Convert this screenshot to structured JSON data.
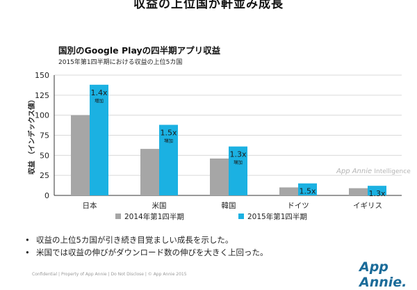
{
  "headline": "収益の上位国が軒並み成長",
  "chart_data": {
    "type": "bar",
    "title": "国別のGoogle Playの四半期アプリ収益",
    "subtitle": "2015年第1四半期における収益の上位5カ国",
    "ylabel": "収益 （インデックス値）",
    "xlabel": "",
    "categories": [
      "日本",
      "米国",
      "韓国",
      "ドイツ",
      "イギリス"
    ],
    "ylim": [
      0,
      150
    ],
    "yticks": [
      0,
      25,
      50,
      75,
      100,
      125,
      150
    ],
    "grid": true,
    "legend_position": "bottom",
    "series": [
      {
        "name": "2014年第1四半期",
        "color": "#a6a6a6",
        "values": [
          100,
          58,
          46,
          10,
          9
        ]
      },
      {
        "name": "2015年第1四半期",
        "color": "#1bb1e2",
        "values": [
          138,
          88,
          61,
          15,
          12
        ]
      }
    ],
    "annotations": [
      {
        "category": "日本",
        "ratio": "1.4x",
        "note": "増加"
      },
      {
        "category": "米国",
        "ratio": "1.5x",
        "note": "増加"
      },
      {
        "category": "韓国",
        "ratio": "1.3x",
        "note": "増加"
      },
      {
        "category": "ドイツ",
        "ratio": "1.5x",
        "note": ""
      },
      {
        "category": "イギリス",
        "ratio": "1.3x",
        "note": ""
      }
    ]
  },
  "bullets": [
    "収益の上位5カ国が引き続き目覚ましい成長を示した。",
    "米国では収益の伸びがダウンロード数の伸びを大きく上回った。"
  ],
  "watermark": {
    "brand": "App Annie",
    "suffix": "Intelligence"
  },
  "footer": "Confidential | Property of App Annie | Do Not Disclose | © App Annie 2015",
  "logo": "App Annie."
}
